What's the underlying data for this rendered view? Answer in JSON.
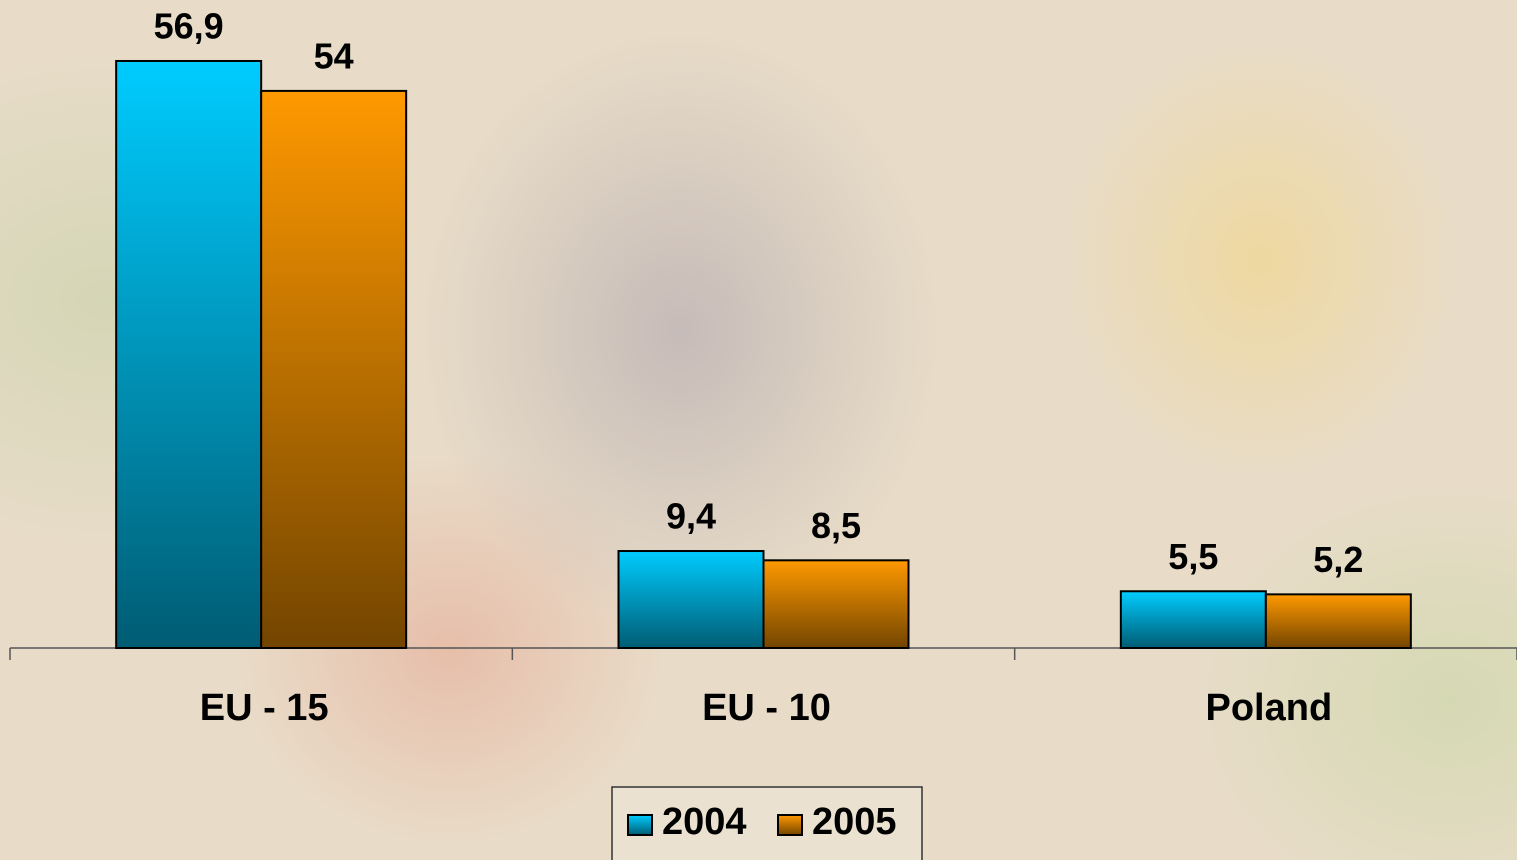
{
  "chart_data": {
    "type": "bar",
    "categories": [
      "EU - 15",
      "EU - 10",
      "Poland"
    ],
    "series": [
      {
        "name": "2004",
        "color": "#00ccff",
        "values": [
          56.9,
          9.4,
          5.5
        ],
        "value_labels": [
          "56,9",
          "9,4",
          "5,5"
        ]
      },
      {
        "name": "2005",
        "color": "#ff9900",
        "values": [
          54,
          8.5,
          5.2
        ],
        "value_labels": [
          "54",
          "8,5",
          "5,2"
        ]
      }
    ],
    "ylim": [
      0,
      60
    ]
  }
}
